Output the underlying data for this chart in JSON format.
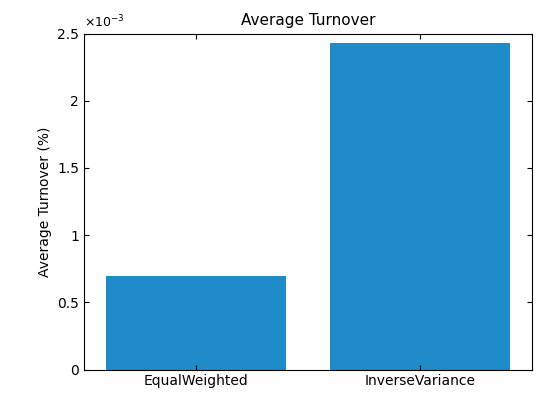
{
  "categories": [
    "EqualWeighted",
    "InverseVariance"
  ],
  "values": [
    0.0007,
    0.00243
  ],
  "bar_color": "#1f8bc8",
  "title": "Average Turnover",
  "ylabel": "Average Turnover (%)",
  "ylim": [
    0,
    0.0025
  ],
  "yticks": [
    0,
    0.0005,
    0.001,
    0.0015,
    0.002,
    0.0025
  ],
  "ytick_labels": [
    "0",
    "0.5",
    "1",
    "1.5",
    "2",
    "2.5"
  ],
  "background_color": "#ffffff",
  "title_fontsize": 11,
  "label_fontsize": 10,
  "tick_fontsize": 10,
  "bar_width": 0.8,
  "xlim": [
    -0.5,
    1.5
  ]
}
